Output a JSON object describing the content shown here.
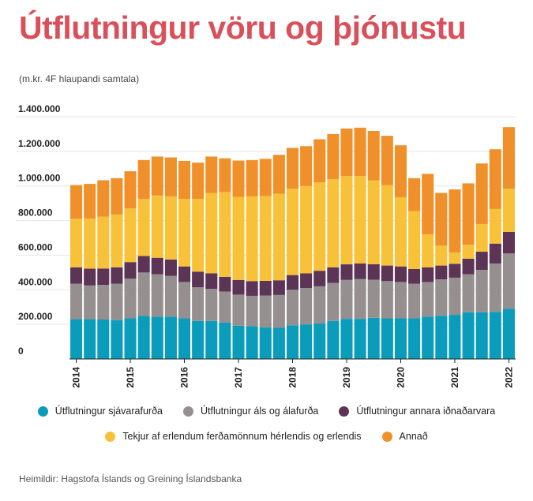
{
  "title": "Útflutningur vöru og þjónustu",
  "subtitle": "(m.kr. 4F hlaupandi samtala)",
  "source": "Heimildir: Hagstofa Íslands og Greining Íslandsbanka",
  "colors": {
    "title": "#d9505a",
    "sjavarafurda": "#0a9cba",
    "als": "#95908f",
    "annara": "#5c3456",
    "tekjur": "#f8c13a",
    "annad": "#f0902a"
  },
  "chart_data": {
    "type": "bar",
    "stacked": true,
    "title": "Útflutningur vöru og þjónustu",
    "ylabel": "",
    "xlabel": "",
    "ylim": [
      0,
      1400000
    ],
    "yticks": [
      "0",
      "200.000",
      "400.000",
      "600.000",
      "800.000",
      "1.000.000",
      "1.200.000",
      "1.400.000"
    ],
    "xtick_labels": [
      "2014",
      "2015",
      "2016",
      "2017",
      "2018",
      "2019",
      "2020",
      "2021",
      "2022"
    ],
    "grid": true,
    "legend_position": "bottom",
    "categories": [
      "2014Q1",
      "2014Q2",
      "2014Q3",
      "2014Q4",
      "2015Q1",
      "2015Q2",
      "2015Q3",
      "2015Q4",
      "2016Q1",
      "2016Q2",
      "2016Q3",
      "2016Q4",
      "2017Q1",
      "2017Q2",
      "2017Q3",
      "2017Q4",
      "2018Q1",
      "2018Q2",
      "2018Q3",
      "2018Q4",
      "2019Q1",
      "2019Q2",
      "2019Q3",
      "2019Q4",
      "2020Q1",
      "2020Q2",
      "2020Q3",
      "2020Q4",
      "2021Q1",
      "2021Q2",
      "2021Q3",
      "2021Q4",
      "2022Q1"
    ],
    "series": [
      {
        "name": "Útflutningur sjávarafurða",
        "color": "#0a9cba",
        "values": [
          230000,
          230000,
          228000,
          225000,
          235000,
          250000,
          245000,
          245000,
          235000,
          220000,
          220000,
          210000,
          192000,
          190000,
          182000,
          180000,
          195000,
          200000,
          205000,
          220000,
          232000,
          232000,
          238000,
          235000,
          235000,
          235000,
          245000,
          250000,
          255000,
          270000,
          270000,
          272000,
          290000
        ]
      },
      {
        "name": "Útflutningur áls og álafurða",
        "color": "#95908f",
        "values": [
          205000,
          195000,
          200000,
          210000,
          230000,
          250000,
          245000,
          235000,
          210000,
          195000,
          185000,
          180000,
          180000,
          175000,
          185000,
          190000,
          205000,
          210000,
          215000,
          220000,
          225000,
          230000,
          220000,
          215000,
          210000,
          200000,
          200000,
          210000,
          215000,
          220000,
          245000,
          280000,
          320000
        ]
      },
      {
        "name": "Útflutningur annara iðnaðarvara",
        "color": "#5c3456",
        "values": [
          95000,
          97000,
          95000,
          95000,
          95000,
          95000,
          95000,
          95000,
          90000,
          90000,
          90000,
          85000,
          85000,
          85000,
          85000,
          85000,
          85000,
          85000,
          90000,
          90000,
          90000,
          90000,
          90000,
          90000,
          90000,
          85000,
          85000,
          80000,
          80000,
          90000,
          105000,
          115000,
          125000
        ]
      },
      {
        "name": "Tekjur af erlendum ferðamönnum hérlendis og erlendis",
        "color": "#f8c13a",
        "values": [
          280000,
          290000,
          300000,
          305000,
          310000,
          330000,
          360000,
          365000,
          390000,
          420000,
          465000,
          490000,
          480000,
          490000,
          490000,
          500000,
          500000,
          505000,
          510000,
          510000,
          510000,
          505000,
          485000,
          465000,
          400000,
          335000,
          190000,
          115000,
          65000,
          80000,
          160000,
          200000,
          250000
        ]
      },
      {
        "name": "Annað",
        "color": "#f0902a",
        "values": [
          195000,
          200000,
          210000,
          210000,
          215000,
          225000,
          225000,
          225000,
          220000,
          210000,
          210000,
          195000,
          210000,
          210000,
          215000,
          225000,
          235000,
          230000,
          250000,
          260000,
          275000,
          280000,
          285000,
          285000,
          300000,
          190000,
          350000,
          305000,
          365000,
          355000,
          350000,
          345000,
          355000
        ]
      }
    ]
  },
  "legend": {
    "row1": [
      {
        "label": "Útflutningur sjávarafurða",
        "color": "#0a9cba"
      },
      {
        "label": "Útflutningur áls og álafurða",
        "color": "#95908f"
      },
      {
        "label": "Útflutningur annara iðnaðarvara",
        "color": "#5c3456"
      }
    ],
    "row2": [
      {
        "label": "Tekjur af erlendum ferðamönnum hérlendis og erlendis",
        "color": "#f8c13a"
      },
      {
        "label": "Annað",
        "color": "#f0902a"
      }
    ]
  }
}
